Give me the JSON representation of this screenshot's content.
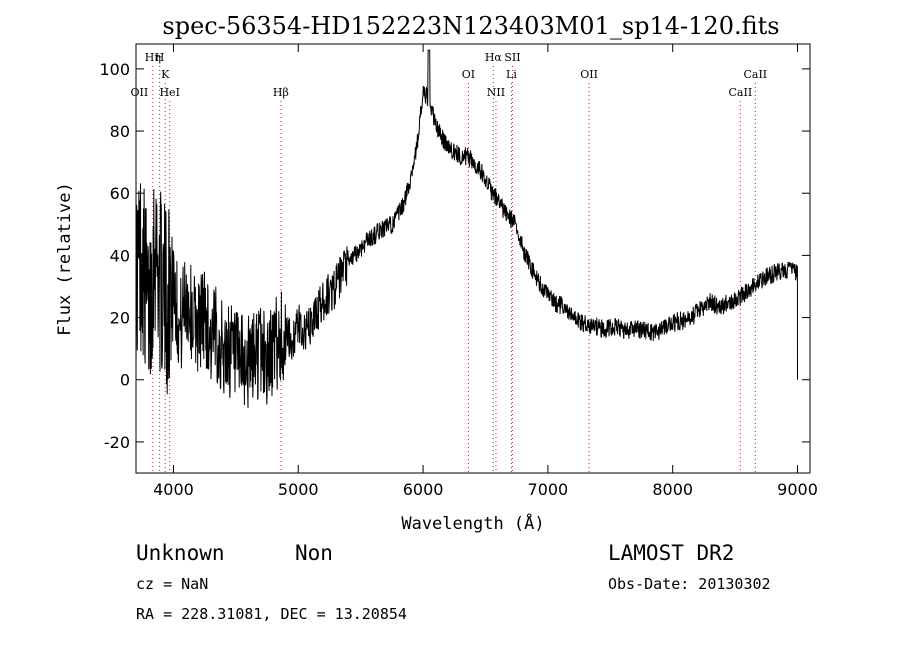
{
  "chart_data": {
    "type": "line",
    "title": "spec-56354-HD152223N123403M01_sp14-120.fits",
    "xlabel": "Wavelength (Å)",
    "ylabel": "Flux (relative)",
    "xlim": [
      3700,
      9100
    ],
    "ylim": [
      -30,
      108
    ],
    "x_ticks": [
      4000,
      5000,
      6000,
      7000,
      8000,
      9000
    ],
    "y_ticks": [
      -20,
      0,
      20,
      40,
      60,
      80,
      100
    ],
    "grid": false,
    "series": [
      {
        "x": [
          3700,
          3750,
          3800,
          3850,
          3900,
          3950,
          4000,
          4050,
          4100,
          4150,
          4200,
          4250,
          4300,
          4350,
          4400,
          4450,
          4500,
          4550,
          4600,
          4650,
          4700,
          4750,
          4800,
          4850,
          4900,
          4950,
          5000,
          5050,
          5100,
          5150,
          5200,
          5250,
          5300,
          5350,
          5400,
          5450,
          5500,
          5550,
          5600,
          5650,
          5700,
          5750,
          5800,
          5850,
          5900,
          5950,
          6000,
          6050,
          6100,
          6150,
          6200,
          6250,
          6300,
          6350,
          6400,
          6450,
          6500,
          6550,
          6600,
          6650,
          6700,
          6750,
          6800,
          6850,
          6900,
          6950,
          7000,
          7050,
          7100,
          7150,
          7200,
          7250,
          7300,
          7350,
          7400,
          7450,
          7500,
          7550,
          7600,
          7650,
          7700,
          7750,
          7800,
          7850,
          7900,
          7950,
          8000,
          8050,
          8100,
          8150,
          8200,
          8250,
          8300,
          8350,
          8400,
          8450,
          8500,
          8550,
          8600,
          8650,
          8700,
          8750,
          8800,
          8850,
          8900,
          8950,
          9000
        ],
        "y": [
          35,
          40,
          20,
          45,
          30,
          25,
          35,
          15,
          28,
          20,
          18,
          22,
          12,
          15,
          8,
          10,
          6,
          5,
          5,
          8,
          10,
          6,
          10,
          13,
          14,
          12,
          18,
          15,
          17,
          22,
          25,
          28,
          30,
          34,
          37,
          40,
          42,
          45,
          46,
          48,
          49,
          50,
          53,
          57,
          65,
          75,
          92,
          90,
          82,
          78,
          75,
          73,
          72,
          72,
          70,
          68,
          65,
          60,
          58,
          54,
          52,
          49,
          42,
          38,
          33,
          30,
          27,
          25,
          24,
          22,
          20,
          19,
          18,
          17,
          17,
          16,
          17,
          17,
          16,
          16,
          16,
          16,
          16,
          15,
          16,
          17,
          18,
          19,
          19,
          20,
          22,
          23,
          25,
          24,
          24,
          25,
          26,
          27,
          29,
          30,
          32,
          33,
          34,
          35,
          35,
          36,
          34
        ],
        "noise_profile": "heavy scatter below 4900 Å (±30), moderate scatter above"
      }
    ],
    "lines": [
      {
        "label": "OII",
        "x": 3727,
        "row": 3,
        "dotted": false
      },
      {
        "label": "Hη",
        "x": 3835,
        "row": 1,
        "dotted": true
      },
      {
        "label": "H",
        "x": 3889,
        "row": 1,
        "dotted": true
      },
      {
        "label": "K",
        "x": 3934,
        "row": 2,
        "dotted": true
      },
      {
        "label": "HeI",
        "x": 3970,
        "row": 3,
        "dotted": true
      },
      {
        "label": "Hβ",
        "x": 4861,
        "row": 3,
        "dotted": true
      },
      {
        "label": "OI",
        "x": 6363,
        "row": 2,
        "dotted": true
      },
      {
        "label": "Hα",
        "x": 6563,
        "row": 1,
        "dotted": true
      },
      {
        "label": "NII",
        "x": 6584,
        "row": 3,
        "dotted": true
      },
      {
        "label": "SII",
        "x": 6716,
        "row": 1,
        "dotted": true
      },
      {
        "label": "Li",
        "x": 6708,
        "row": 2,
        "dotted": true
      },
      {
        "label": "OII",
        "x": 7330,
        "row": 2,
        "dotted": true
      },
      {
        "label": "CaII",
        "x": 8542,
        "row": 3,
        "dotted": true
      },
      {
        "label": "CaII",
        "x": 8662,
        "row": 2,
        "dotted": true
      }
    ]
  },
  "info": {
    "object_class": "Unknown",
    "subclass": "Non",
    "survey": "LAMOST DR2",
    "cz": "cz = NaN",
    "obs_date": "Obs-Date: 20130302",
    "coords": "RA = 228.31081, DEC =  13.20854"
  },
  "colors": {
    "line": "#000000",
    "marker": "#cc2222",
    "background": "#ffffff"
  }
}
